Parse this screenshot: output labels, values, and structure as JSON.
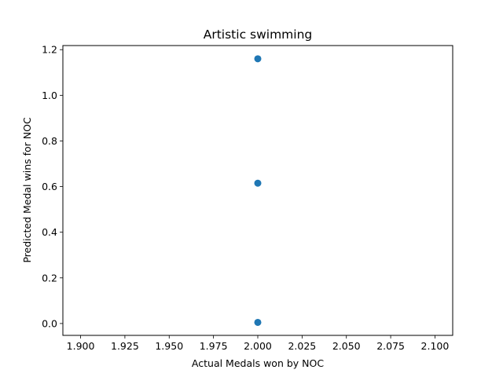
{
  "chart_data": {
    "type": "scatter",
    "title": "Artistic swimming",
    "xlabel": "Actual Medals won by NOC",
    "ylabel": "Predicted Medal wins for NOC",
    "xlim": [
      1.89,
      2.11
    ],
    "ylim": [
      -0.052,
      1.218
    ],
    "xticks": [
      1.9,
      1.925,
      1.95,
      1.975,
      2.0,
      2.025,
      2.05,
      2.075,
      2.1
    ],
    "xtick_labels": [
      "1.900",
      "1.925",
      "1.950",
      "1.975",
      "2.000",
      "2.025",
      "2.050",
      "2.075",
      "2.100"
    ],
    "yticks": [
      0.0,
      0.2,
      0.4,
      0.6,
      0.8,
      1.0,
      1.2
    ],
    "ytick_labels": [
      "0.0",
      "0.2",
      "0.4",
      "0.6",
      "0.8",
      "1.0",
      "1.2"
    ],
    "grid": false,
    "series": [
      {
        "color": "#1f77b4",
        "points": [
          {
            "x": 2.0,
            "y": 1.16
          },
          {
            "x": 2.0,
            "y": 0.615
          },
          {
            "x": 2.0,
            "y": 0.005
          }
        ]
      }
    ]
  }
}
